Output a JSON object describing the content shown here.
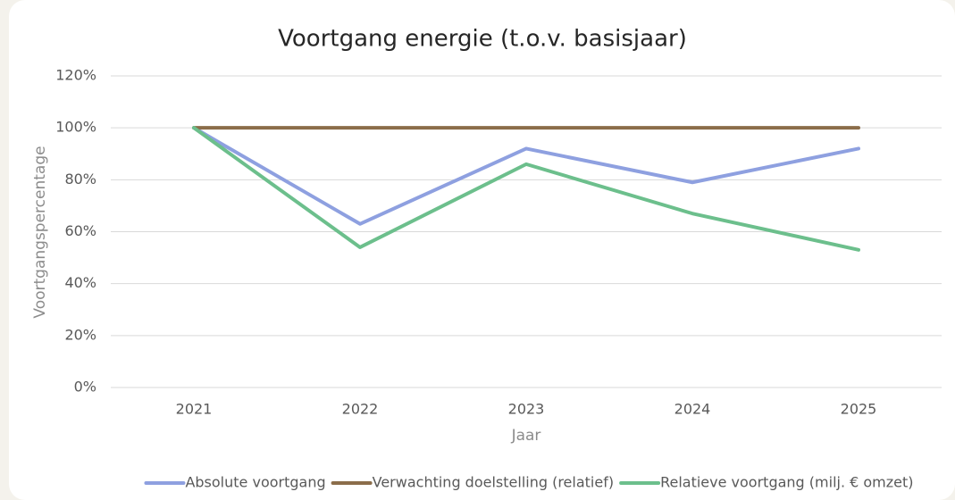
{
  "chart_data": {
    "type": "line",
    "title": "Voortgang energie (t.o.v. basisjaar)",
    "x_label": "Jaar",
    "y_label": "Voortgangspercentage",
    "categories": [
      "2021",
      "2022",
      "2023",
      "2024",
      "2025"
    ],
    "series": [
      {
        "name": "Absolute voortgang",
        "color": "#8ea0e0",
        "values": [
          100,
          63,
          92,
          79,
          92
        ]
      },
      {
        "name": "Verwachting doelstelling (relatief)",
        "color": "#8b6d4a",
        "values": [
          100,
          100,
          100,
          100,
          100
        ]
      },
      {
        "name": "Relatieve voortgang (milj. € omzet)",
        "color": "#6cbf8c",
        "values": [
          100,
          54,
          86,
          67,
          53
        ]
      }
    ],
    "ylim": [
      0,
      120
    ],
    "yticks": [
      {
        "value": 0,
        "label": "0%"
      },
      {
        "value": 20,
        "label": "20%"
      },
      {
        "value": 40,
        "label": "40%"
      },
      {
        "value": 60,
        "label": "60%"
      },
      {
        "value": 80,
        "label": "80%"
      },
      {
        "value": 100,
        "label": "100%"
      },
      {
        "value": 120,
        "label": "120%"
      }
    ],
    "grid": true,
    "legend": "bottom"
  }
}
